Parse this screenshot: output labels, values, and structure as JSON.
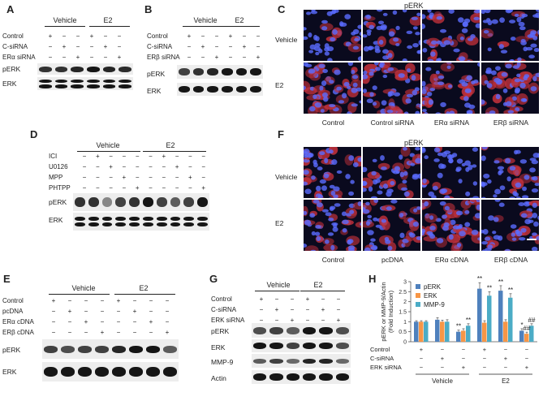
{
  "panels": {
    "A": {
      "letter": "A",
      "groups": [
        "Vehicle",
        "E2"
      ],
      "rows": [
        "Control",
        "C-siRNA",
        "ERα siRNA"
      ],
      "signs": [
        [
          "+",
          "−",
          "−",
          "+",
          "−",
          "−"
        ],
        [
          "−",
          "+",
          "−",
          "−",
          "+",
          "−"
        ],
        [
          "−",
          "−",
          "+",
          "−",
          "−",
          "+"
        ]
      ],
      "blots": [
        "pERK",
        "ERK"
      ]
    },
    "B": {
      "letter": "B",
      "groups": [
        "Vehicle",
        "E2"
      ],
      "rows": [
        "Control",
        "C-siRNA",
        "ERβ siRNA"
      ],
      "signs": [
        [
          "+",
          "−",
          "−",
          "+",
          "−",
          "−"
        ],
        [
          "−",
          "+",
          "−",
          "−",
          "+",
          "−"
        ],
        [
          "−",
          "−",
          "+",
          "−",
          "−",
          "+"
        ]
      ],
      "blots": [
        "pERK",
        "ERK"
      ]
    },
    "C": {
      "letter": "C",
      "title": "pERK",
      "row_labels": [
        "Vehicle",
        "E2"
      ],
      "col_labels": [
        "Control",
        "Control siRNA",
        "ERα siRNA",
        "ERβ siRNA"
      ]
    },
    "D": {
      "letter": "D",
      "groups": [
        "Vehicle",
        "E2"
      ],
      "rows": [
        "ICI",
        "U0126",
        "MPP",
        "PHTPP"
      ],
      "signs": [
        [
          "−",
          "+",
          "−",
          "−",
          "−",
          "−",
          "+",
          "−",
          "−",
          "−"
        ],
        [
          "−",
          "−",
          "+",
          "−",
          "−",
          "−",
          "−",
          "+",
          "−",
          "−"
        ],
        [
          "−",
          "−",
          "−",
          "+",
          "−",
          "−",
          "−",
          "−",
          "+",
          "−"
        ],
        [
          "−",
          "−",
          "−",
          "−",
          "+",
          "−",
          "−",
          "−",
          "−",
          "+"
        ]
      ],
      "blots": [
        "pERK",
        "ERK"
      ]
    },
    "E": {
      "letter": "E",
      "groups": [
        "Vehicle",
        "E2"
      ],
      "rows": [
        "Control",
        "pcDNA",
        "ERα cDNA",
        "ERβ cDNA"
      ],
      "signs": [
        [
          "+",
          "−",
          "−",
          "−",
          "+",
          "−",
          "−",
          "−"
        ],
        [
          "−",
          "+",
          "−",
          "−",
          "−",
          "+",
          "−",
          "−"
        ],
        [
          "−",
          "−",
          "+",
          "−",
          "−",
          "−",
          "+",
          "−"
        ],
        [
          "−",
          "−",
          "−",
          "+",
          "−",
          "−",
          "−",
          "+"
        ]
      ],
      "blots": [
        "pERK",
        "ERK"
      ]
    },
    "F": {
      "letter": "F",
      "title": "pERK",
      "row_labels": [
        "Vehicle",
        "E2"
      ],
      "col_labels": [
        "Control",
        "pcDNA",
        "ERα cDNA",
        "ERβ cDNA"
      ]
    },
    "G": {
      "letter": "G",
      "groups": [
        "Vehicle",
        "E2"
      ],
      "rows": [
        "Control",
        "C-siRNA",
        "ERK siRNA"
      ],
      "signs": [
        [
          "+",
          "−",
          "−",
          "+",
          "−",
          "−"
        ],
        [
          "−",
          "+",
          "−",
          "−",
          "+",
          "−"
        ],
        [
          "−",
          "−",
          "+",
          "−",
          "−",
          "+"
        ]
      ],
      "blots": [
        "pERK",
        "ERK",
        "MMP-9",
        "Actin"
      ]
    },
    "H": {
      "letter": "H"
    }
  },
  "chart_data": {
    "type": "bar",
    "ylabel": "pERK or MMP-9/Actin (Fold Induction)",
    "ylim": [
      0,
      3
    ],
    "yticks": [
      0,
      0.5,
      1,
      1.5,
      2,
      2.5,
      3
    ],
    "legend": [
      "pERK",
      "ERK",
      "MMP-9"
    ],
    "series_colors": [
      "#4f81bd",
      "#f79646",
      "#4bacc6"
    ],
    "row_labels": [
      "Control",
      "C-siRNA",
      "ERK siRNA"
    ],
    "signs": [
      [
        "+",
        "−",
        "−",
        "+",
        "−",
        "−"
      ],
      [
        "−",
        "+",
        "−",
        "−",
        "+",
        "−"
      ],
      [
        "−",
        "−",
        "+",
        "−",
        "−",
        "+"
      ]
    ],
    "group_labels": [
      "Vehicle",
      "E2"
    ],
    "series": [
      {
        "name": "pERK",
        "values": [
          1.0,
          1.1,
          0.5,
          2.65,
          2.55,
          0.55
        ]
      },
      {
        "name": "ERK",
        "values": [
          1.0,
          1.0,
          0.55,
          0.95,
          1.0,
          0.4
        ]
      },
      {
        "name": "MMP-9",
        "values": [
          1.0,
          1.0,
          0.8,
          2.3,
          2.2,
          0.8
        ]
      }
    ],
    "errors": [
      [
        0.05,
        0.1,
        0.08,
        0.3,
        0.25,
        0.1
      ],
      [
        0.05,
        0.08,
        0.1,
        0.1,
        0.1,
        0.08
      ],
      [
        0.05,
        0.1,
        0.1,
        0.2,
        0.2,
        0.1
      ]
    ],
    "annotations": [
      {
        "bar": [
          2,
          0
        ],
        "text": "**"
      },
      {
        "bar": [
          2,
          2
        ],
        "text": "**"
      },
      {
        "bar": [
          3,
          0
        ],
        "text": "**"
      },
      {
        "bar": [
          3,
          2
        ],
        "text": "**"
      },
      {
        "bar": [
          4,
          0
        ],
        "text": "**"
      },
      {
        "bar": [
          4,
          2
        ],
        "text": "**"
      },
      {
        "bar": [
          5,
          0
        ],
        "text": "*"
      },
      {
        "bar": [
          5,
          1
        ],
        "text": "##"
      },
      {
        "bar": [
          5,
          2
        ],
        "text": "##"
      }
    ]
  }
}
